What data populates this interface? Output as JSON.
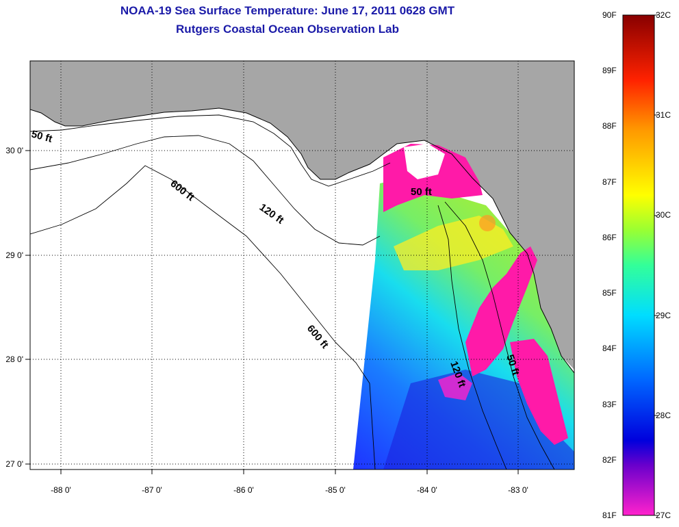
{
  "header": {
    "title": "NOAA-19 Sea Surface Temperature:  June 17, 2011 0628 GMT",
    "subtitle": "Rutgers Coastal Ocean Observation Lab"
  },
  "axes": {
    "lon_ticks": [
      "-88 0'",
      "-87 0'",
      "-86 0'",
      "-85 0'",
      "-84 0'",
      "-83 0'"
    ],
    "lat_ticks": [
      "30 0'",
      "29 0'",
      "28 0'",
      "27 0'"
    ]
  },
  "contours": {
    "labels": [
      "50 ft",
      "600 ft",
      "120 ft",
      "600 ft",
      "50 ft",
      "120 ft",
      "50 ft"
    ]
  },
  "colorbar": {
    "fahrenheit": [
      "90F",
      "89F",
      "88F",
      "87F",
      "86F",
      "85F",
      "84F",
      "83F",
      "82F",
      "81F"
    ],
    "celsius": [
      "32C",
      "31C",
      "30C",
      "29C",
      "28C",
      "27C"
    ]
  },
  "colors": {
    "land": "#a6a6a6",
    "title": "#1a1aa8",
    "cloud_flag": "#ff1aa8"
  }
}
